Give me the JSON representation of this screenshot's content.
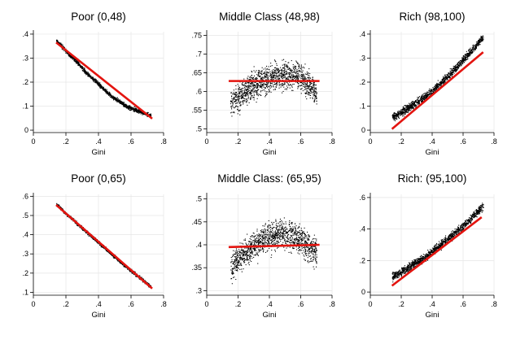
{
  "chart_data": [
    {
      "type": "scatter",
      "title": "Poor (0,48)",
      "xlabel": "Gini",
      "ylabel": "",
      "xlim": [
        0,
        0.8
      ],
      "ylim": [
        -0.01,
        0.41
      ],
      "xticks": [
        0,
        0.2,
        0.4,
        0.6,
        0.8
      ],
      "xtick_labels": [
        "0",
        ".2",
        ".4",
        ".6",
        ".8"
      ],
      "yticks": [
        0,
        0.1,
        0.2,
        0.3,
        0.4
      ],
      "ytick_labels": [
        "0",
        ".1",
        ".2",
        ".3",
        ".4"
      ],
      "grid": true,
      "scatter_points": [
        [
          0.14,
          0.375
        ],
        [
          0.17,
          0.353
        ],
        [
          0.22,
          0.315
        ],
        [
          0.27,
          0.282
        ],
        [
          0.32,
          0.243
        ],
        [
          0.36,
          0.218
        ],
        [
          0.4,
          0.193
        ],
        [
          0.44,
          0.166
        ],
        [
          0.48,
          0.142
        ],
        [
          0.52,
          0.124
        ],
        [
          0.56,
          0.106
        ],
        [
          0.6,
          0.092
        ],
        [
          0.64,
          0.082
        ],
        [
          0.68,
          0.072
        ],
        [
          0.72,
          0.062
        ]
      ],
      "scatter_spread": 0.008,
      "fit_line": {
        "x": [
          0.14,
          0.73
        ],
        "y": [
          0.365,
          0.048
        ],
        "color": "#e3140f"
      }
    },
    {
      "type": "scatter",
      "title": "Middle Class (48,98)",
      "xlabel": "Gini",
      "ylabel": "",
      "xlim": [
        0,
        0.8
      ],
      "ylim": [
        0.49,
        0.76
      ],
      "xticks": [
        0,
        0.2,
        0.4,
        0.6,
        0.8
      ],
      "xtick_labels": [
        "0",
        ".2",
        ".4",
        ".6",
        ".8"
      ],
      "yticks": [
        0.5,
        0.55,
        0.6,
        0.65,
        0.7,
        0.75
      ],
      "ytick_labels": [
        ".5",
        ".55",
        ".6",
        ".65",
        ".7",
        ".75"
      ],
      "grid": true,
      "scatter_points": [
        [
          0.15,
          0.565
        ],
        [
          0.2,
          0.585
        ],
        [
          0.25,
          0.605
        ],
        [
          0.3,
          0.618
        ],
        [
          0.35,
          0.628
        ],
        [
          0.4,
          0.635
        ],
        [
          0.45,
          0.642
        ],
        [
          0.5,
          0.645
        ],
        [
          0.55,
          0.645
        ],
        [
          0.6,
          0.64
        ],
        [
          0.65,
          0.62
        ],
        [
          0.7,
          0.59
        ]
      ],
      "scatter_spread": 0.035,
      "fit_line": {
        "x": [
          0.14,
          0.72
        ],
        "y": [
          0.628,
          0.628
        ],
        "color": "#e3140f"
      }
    },
    {
      "type": "scatter",
      "title": "Rich (98,100)",
      "xlabel": "Gini",
      "ylabel": "",
      "xlim": [
        0,
        0.8
      ],
      "ylim": [
        -0.01,
        0.41
      ],
      "xticks": [
        0,
        0.2,
        0.4,
        0.6,
        0.8
      ],
      "xtick_labels": [
        "0",
        ".2",
        ".4",
        ".6",
        ".8"
      ],
      "yticks": [
        0,
        0.1,
        0.2,
        0.3,
        0.4
      ],
      "ytick_labels": [
        "0",
        ".1",
        ".2",
        ".3",
        ".4"
      ],
      "grid": true,
      "scatter_points": [
        [
          0.14,
          0.055
        ],
        [
          0.2,
          0.075
        ],
        [
          0.25,
          0.095
        ],
        [
          0.3,
          0.115
        ],
        [
          0.35,
          0.14
        ],
        [
          0.4,
          0.165
        ],
        [
          0.45,
          0.195
        ],
        [
          0.5,
          0.225
        ],
        [
          0.55,
          0.26
        ],
        [
          0.6,
          0.295
        ],
        [
          0.65,
          0.33
        ],
        [
          0.7,
          0.37
        ],
        [
          0.73,
          0.39
        ]
      ],
      "scatter_spread": 0.016,
      "fit_line": {
        "x": [
          0.14,
          0.73
        ],
        "y": [
          0.005,
          0.325
        ],
        "color": "#e3140f"
      }
    },
    {
      "type": "scatter",
      "title": "Poor (0,65)",
      "xlabel": "Gini",
      "ylabel": "",
      "xlim": [
        0,
        0.8
      ],
      "ylim": [
        0.085,
        0.61
      ],
      "xticks": [
        0,
        0.2,
        0.4,
        0.6,
        0.8
      ],
      "xtick_labels": [
        "0",
        ".2",
        ".4",
        ".6",
        ".8"
      ],
      "yticks": [
        0.1,
        0.2,
        0.3,
        0.4,
        0.5,
        0.6
      ],
      "ytick_labels": [
        ".1",
        ".2",
        ".3",
        ".4",
        ".5",
        ".6"
      ],
      "grid": true,
      "scatter_points": [
        [
          0.14,
          0.56
        ],
        [
          0.2,
          0.51
        ],
        [
          0.26,
          0.465
        ],
        [
          0.32,
          0.42
        ],
        [
          0.38,
          0.375
        ],
        [
          0.44,
          0.33
        ],
        [
          0.5,
          0.285
        ],
        [
          0.56,
          0.24
        ],
        [
          0.62,
          0.2
        ],
        [
          0.67,
          0.165
        ],
        [
          0.72,
          0.13
        ]
      ],
      "scatter_spread": 0.008,
      "fit_line": {
        "x": [
          0.14,
          0.73
        ],
        "y": [
          0.555,
          0.12
        ],
        "color": "#e3140f"
      }
    },
    {
      "type": "scatter",
      "title": "Middle Class: (65,95)",
      "xlabel": "Gini",
      "ylabel": "",
      "xlim": [
        0,
        0.8
      ],
      "ylim": [
        0.29,
        0.51
      ],
      "xticks": [
        0,
        0.2,
        0.4,
        0.6,
        0.8
      ],
      "xtick_labels": [
        "0",
        ".2",
        ".4",
        ".6",
        ".8"
      ],
      "yticks": [
        0.3,
        0.35,
        0.4,
        0.45,
        0.5
      ],
      "ytick_labels": [
        ".3",
        ".35",
        ".4",
        ".45",
        ".5"
      ],
      "grid": true,
      "scatter_points": [
        [
          0.15,
          0.35
        ],
        [
          0.2,
          0.37
        ],
        [
          0.25,
          0.385
        ],
        [
          0.3,
          0.398
        ],
        [
          0.35,
          0.41
        ],
        [
          0.4,
          0.418
        ],
        [
          0.45,
          0.425
        ],
        [
          0.5,
          0.425
        ],
        [
          0.55,
          0.42
        ],
        [
          0.6,
          0.41
        ],
        [
          0.65,
          0.398
        ],
        [
          0.7,
          0.38
        ]
      ],
      "scatter_spread": 0.03,
      "fit_line": {
        "x": [
          0.14,
          0.72
        ],
        "y": [
          0.395,
          0.4
        ],
        "color": "#e3140f"
      }
    },
    {
      "type": "scatter",
      "title": "Rich: (95,100)",
      "xlabel": "Gini",
      "ylabel": "",
      "xlim": [
        0,
        0.8
      ],
      "ylim": [
        -0.02,
        0.62
      ],
      "xticks": [
        0,
        0.2,
        0.4,
        0.6,
        0.8
      ],
      "xtick_labels": [
        "0",
        ".2",
        ".4",
        ".6",
        ".8"
      ],
      "yticks": [
        0,
        0.2,
        0.4,
        0.6
      ],
      "ytick_labels": [
        "0",
        ".2",
        ".4",
        ".6"
      ],
      "grid": true,
      "scatter_points": [
        [
          0.14,
          0.1
        ],
        [
          0.2,
          0.13
        ],
        [
          0.25,
          0.16
        ],
        [
          0.3,
          0.19
        ],
        [
          0.35,
          0.22
        ],
        [
          0.4,
          0.26
        ],
        [
          0.45,
          0.3
        ],
        [
          0.5,
          0.34
        ],
        [
          0.55,
          0.38
        ],
        [
          0.6,
          0.42
        ],
        [
          0.65,
          0.47
        ],
        [
          0.7,
          0.52
        ],
        [
          0.73,
          0.55
        ]
      ],
      "scatter_spread": 0.025,
      "fit_line": {
        "x": [
          0.14,
          0.72
        ],
        "y": [
          0.04,
          0.475
        ],
        "color": "#e3140f"
      }
    }
  ],
  "colors": {
    "points": "#000000",
    "fit": "#e3140f",
    "grid": "#e6e6e6",
    "axis": "#000000"
  }
}
